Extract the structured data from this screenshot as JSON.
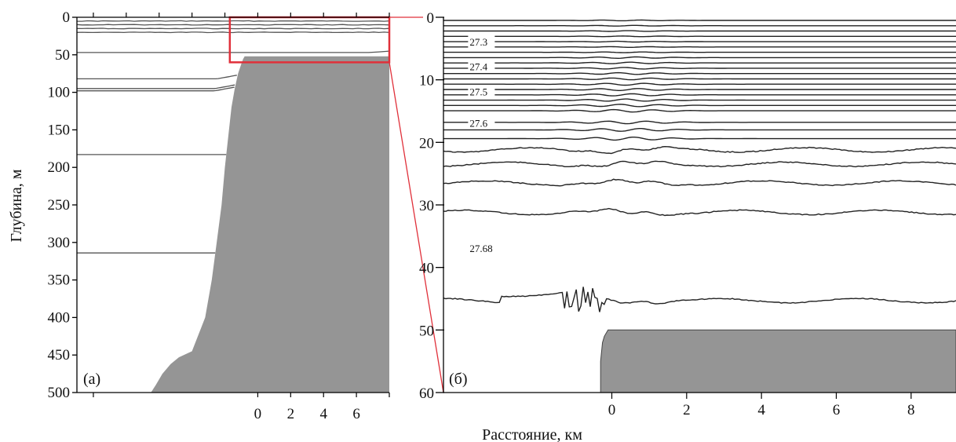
{
  "figure": {
    "ylabel": "Глубина, м",
    "xlabel": "Расстояние, км",
    "colors": {
      "bottom": "#959595",
      "isopycnal": "#555555",
      "zoom_box": "#e0303a",
      "axis": "#000000"
    }
  },
  "chart_data": [
    {
      "type": "line",
      "panel_label": "(а)",
      "ylabel": "Глубина, м",
      "xlabel": "Расстояние, км",
      "y_inverted": true,
      "ylim": [
        0,
        500
      ],
      "y_ticks": [
        0,
        50,
        100,
        150,
        200,
        250,
        300,
        350,
        400,
        450,
        500
      ],
      "xlim": [
        -11,
        8
      ],
      "x_ticks": [
        0,
        2,
        4,
        6
      ],
      "zoom_box": {
        "x": [
          -1.7,
          9
        ],
        "y": [
          0,
          60
        ]
      },
      "isopycnal_depths": [
        5,
        10,
        15,
        20,
        47,
        82,
        95,
        98,
        183,
        314
      ],
      "bottom_profile": {
        "x": [
          -7,
          -6.5,
          -6.2,
          -5.8,
          -5.3,
          -4.8,
          -4,
          -3.2,
          -2.8,
          -2.5,
          -2.2,
          -2.0,
          -1.8,
          -1.6,
          -1.4,
          -1.2,
          -1.0,
          -0.9,
          -0.8,
          0,
          8
        ],
        "depth": [
          500,
          500,
          490,
          475,
          462,
          453,
          445,
          400,
          350,
          300,
          250,
          200,
          160,
          120,
          95,
          75,
          62,
          56,
          52,
          52,
          52
        ]
      }
    },
    {
      "type": "line",
      "panel_label": "(б)",
      "y_inverted": true,
      "ylim": [
        0,
        60
      ],
      "y_ticks": [
        0,
        10,
        20,
        30,
        40,
        50,
        60
      ],
      "xlim": [
        -4.5,
        9.2
      ],
      "x_ticks": [
        0,
        2,
        4,
        6,
        8
      ],
      "isopycnal_labels": [
        {
          "depth": 4,
          "text": "27.3"
        },
        {
          "depth": 8,
          "text": "27.4"
        },
        {
          "depth": 12,
          "text": "27.5"
        },
        {
          "depth": 17,
          "text": "27.6"
        },
        {
          "depth": 37,
          "text": "27.68"
        }
      ],
      "bottom_profile": {
        "x": [
          -0.3,
          -0.3,
          -0.25,
          -0.2,
          -0.1,
          9.2
        ],
        "depth": [
          60,
          55,
          52,
          51,
          50,
          50
        ]
      }
    }
  ]
}
